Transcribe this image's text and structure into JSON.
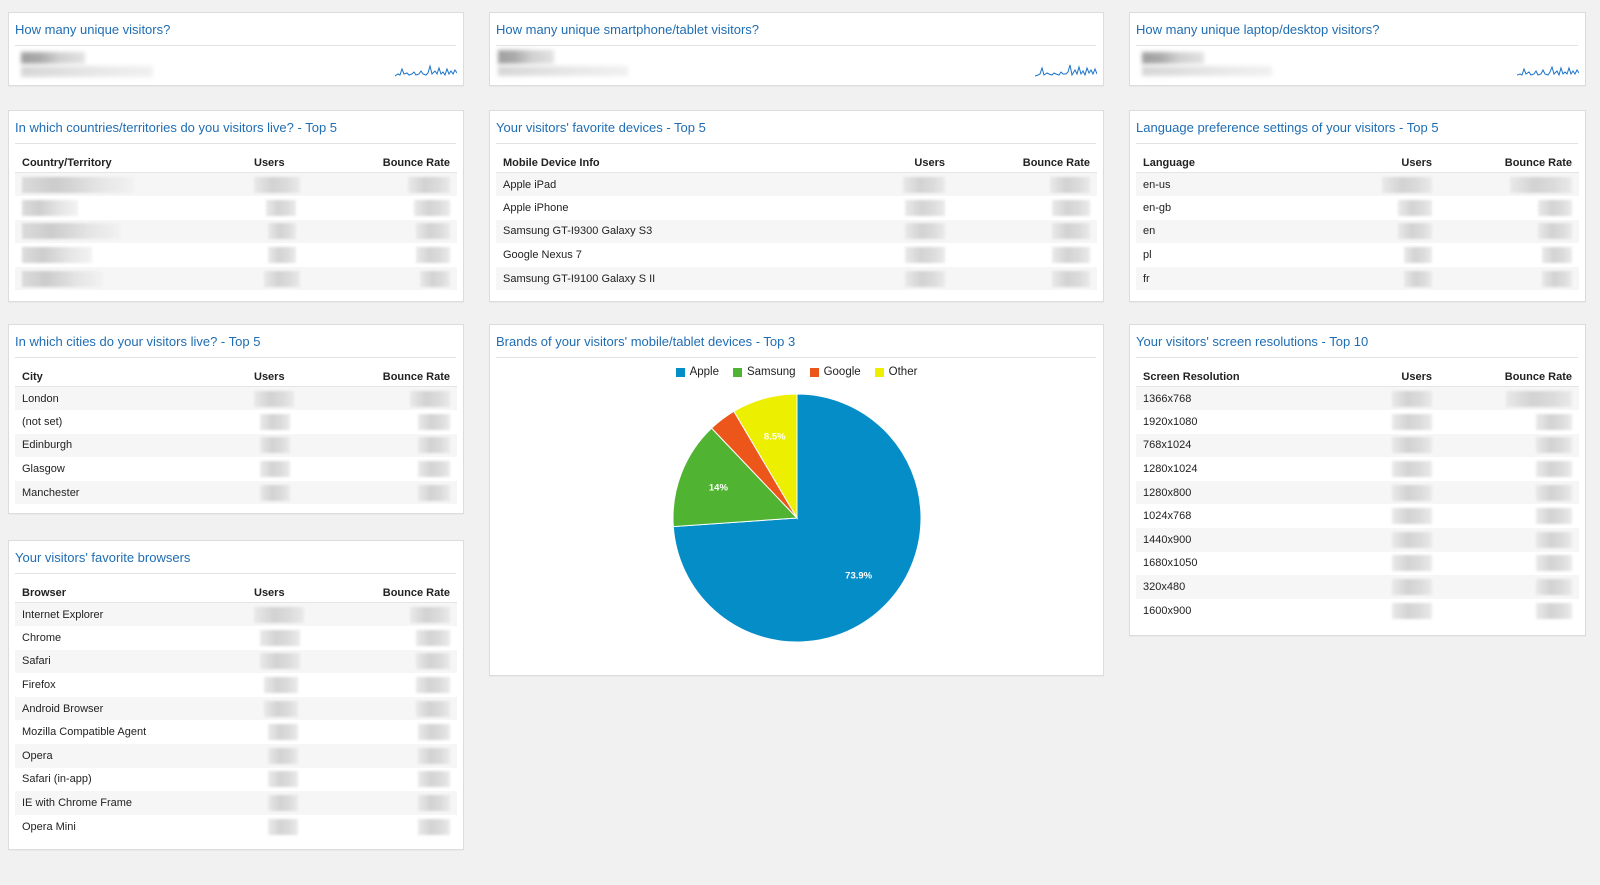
{
  "metrics": [
    {
      "title": "How many unique visitors?"
    },
    {
      "title": "How many unique smartphone/tablet visitors?"
    },
    {
      "title": "How many unique laptop/desktop visitors?"
    }
  ],
  "countries": {
    "title": "In which countries/territories do you visitors live? - Top 5",
    "columns": [
      "Country/Territory",
      "Users",
      "Bounce Rate"
    ],
    "rows": [
      "",
      "",
      "",
      "",
      ""
    ]
  },
  "devices": {
    "title": "Your visitors' favorite devices - Top 5",
    "columns": [
      "Mobile Device Info",
      "Users",
      "Bounce Rate"
    ],
    "rows": [
      "Apple iPad",
      "Apple iPhone",
      "Samsung GT-I9300 Galaxy S3",
      "Google Nexus 7",
      "Samsung GT-I9100 Galaxy S II"
    ]
  },
  "languages": {
    "title": "Language preference settings of your visitors - Top 5",
    "columns": [
      "Language",
      "Users",
      "Bounce Rate"
    ],
    "rows": [
      "en-us",
      "en-gb",
      "en",
      "pl",
      "fr"
    ]
  },
  "cities": {
    "title": "In which cities do your visitors live? - Top 5",
    "columns": [
      "City",
      "Users",
      "Bounce Rate"
    ],
    "rows": [
      "London",
      "(not set)",
      "Edinburgh",
      "Glasgow",
      "Manchester"
    ]
  },
  "brands": {
    "title": "Brands of your visitors' mobile/tablet devices - Top 3"
  },
  "browsers": {
    "title": "Your visitors' favorite browsers",
    "columns": [
      "Browser",
      "Users",
      "Bounce Rate"
    ],
    "rows": [
      "Internet Explorer",
      "Chrome",
      "Safari",
      "Firefox",
      "Android Browser",
      "Mozilla Compatible Agent",
      "Opera",
      "Safari (in-app)",
      "IE with Chrome Frame",
      "Opera Mini"
    ]
  },
  "resolutions": {
    "title": "Your visitors' screen resolutions - Top 10",
    "columns": [
      "Screen Resolution",
      "Users",
      "Bounce Rate"
    ],
    "rows": [
      "1366x768",
      "1920x1080",
      "768x1024",
      "1280x1024",
      "1280x800",
      "1024x768",
      "1440x900",
      "1680x1050",
      "320x480",
      "1600x900"
    ]
  },
  "chart_data": {
    "type": "pie",
    "categories": [
      "Apple",
      "Samsung",
      "Google",
      "Other"
    ],
    "values": [
      73.9,
      14,
      3.6,
      8.5
    ],
    "labels": [
      "73.9%",
      "14%",
      "",
      "8.5%"
    ],
    "colors": [
      "#058dc7",
      "#50b432",
      "#ed561b",
      "#edef00"
    ],
    "legend_position": "top"
  },
  "colors": {
    "title": "#1f6db3",
    "background": "#f1f1f1",
    "sparkline": "#1a73c8"
  }
}
